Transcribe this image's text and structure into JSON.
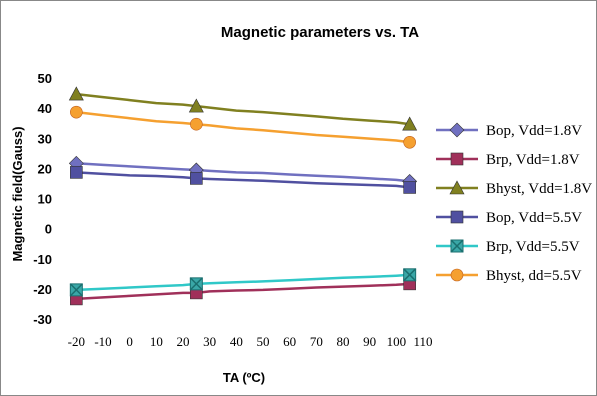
{
  "chart_data": {
    "type": "line",
    "title": "Magnetic parameters vs. TA",
    "xlabel": "TA (ºC)",
    "ylabel": "Magnetic field(Gauss)",
    "xlim": [
      -25,
      110
    ],
    "ylim": [
      -30,
      50
    ],
    "x_ticks": [
      "-20",
      "-10",
      "0",
      "10",
      "20",
      "30",
      "40",
      "50",
      "60",
      "70",
      "80",
      "90",
      "100",
      "110"
    ],
    "y_ticks": [
      "50",
      "40",
      "30",
      "20",
      "10",
      "0",
      "-10",
      "-20",
      "-30"
    ],
    "grid": false,
    "legend_position": "right",
    "series": [
      {
        "name": "Bop, Vdd=1.8V",
        "color": "#7070c0",
        "marker": "diamond",
        "x": [
          -20,
          -10,
          0,
          10,
          20,
          25,
          30,
          40,
          50,
          60,
          70,
          80,
          90,
          100,
          105
        ],
        "y": [
          22,
          21.5,
          21,
          20.5,
          20,
          19.8,
          19.5,
          19,
          18.8,
          18.3,
          17.9,
          17.5,
          17,
          16.5,
          16
        ]
      },
      {
        "name": "Brp, Vdd=1.8V",
        "color": "#a0305a",
        "marker": "square",
        "x": [
          -20,
          -10,
          0,
          10,
          20,
          25,
          30,
          40,
          50,
          60,
          70,
          80,
          90,
          100,
          105
        ],
        "y": [
          -23,
          -22.5,
          -22,
          -21.5,
          -21,
          -21,
          -20.5,
          -20.2,
          -20,
          -19.6,
          -19.2,
          -18.9,
          -18.6,
          -18.3,
          -18
        ]
      },
      {
        "name": "Bhyst, Vdd=1.8V",
        "color": "#808020",
        "marker": "triangle",
        "x": [
          -20,
          -10,
          0,
          10,
          20,
          25,
          30,
          40,
          50,
          60,
          70,
          80,
          90,
          100,
          105
        ],
        "y": [
          45,
          44,
          43,
          42,
          41.5,
          41,
          40.5,
          39.5,
          39,
          38.3,
          37.6,
          36.8,
          36.2,
          35.6,
          35
        ]
      },
      {
        "name": "Bop, Vdd=5.5V",
        "color": "#5050a0",
        "marker": "square",
        "x": [
          -20,
          -10,
          0,
          10,
          20,
          25,
          30,
          40,
          50,
          60,
          70,
          80,
          90,
          100,
          105
        ],
        "y": [
          19,
          18.5,
          18,
          17.8,
          17.4,
          17,
          16.8,
          16.5,
          16.2,
          15.8,
          15.4,
          15.1,
          14.8,
          14.5,
          14
        ]
      },
      {
        "name": "Brp, Vdd=5.5V",
        "color": "#30c8c8",
        "marker": "x-square",
        "x": [
          -20,
          -10,
          0,
          10,
          20,
          25,
          30,
          40,
          50,
          60,
          70,
          80,
          90,
          100,
          105
        ],
        "y": [
          -20,
          -19.6,
          -19.2,
          -18.8,
          -18.4,
          -18,
          -17.8,
          -17.5,
          -17.2,
          -16.8,
          -16.4,
          -16,
          -15.7,
          -15.3,
          -15
        ]
      },
      {
        "name": "Bhyst, dd=5.5V",
        "color": "#f5a030",
        "marker": "circle",
        "x": [
          -20,
          -10,
          0,
          10,
          20,
          25,
          30,
          40,
          50,
          60,
          70,
          80,
          90,
          100,
          105
        ],
        "y": [
          39,
          38,
          37,
          36,
          35.4,
          35,
          34.6,
          33.6,
          33,
          32.2,
          31.4,
          30.8,
          30.2,
          29.6,
          29
        ]
      }
    ]
  }
}
